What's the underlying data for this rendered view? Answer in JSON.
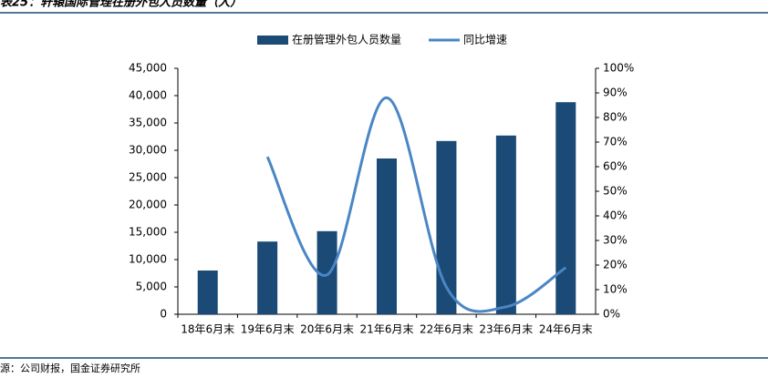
{
  "chart_data": {
    "type": "bar_line",
    "title": "表25：轩辕国际管理在册外包人员数量（人）",
    "source": "源：公司财报，国金证券研究所",
    "categories": [
      "18年6月末",
      "19年6月末",
      "20年6月末",
      "21年6月末",
      "22年6月末",
      "23年6月末",
      "24年6月末"
    ],
    "series": [
      {
        "name": "在册管理外包人员数量",
        "color": "#1a4a75",
        "type": "bar",
        "values": [
          8000,
          13300,
          15200,
          28500,
          31700,
          32700,
          38800
        ]
      },
      {
        "name": "同比增速",
        "color": "#4a86c5",
        "type": "line",
        "axis": "y2",
        "values": [
          null,
          64,
          16,
          88,
          11,
          3,
          19
        ]
      }
    ],
    "ylim": [
      0,
      45000
    ],
    "yticks": [
      0,
      {
        "value": 5000,
        "label": "5,000"
      },
      {
        "value": 10000,
        "label": "10,000"
      },
      {
        "value": 15000,
        "label": "15,000"
      },
      {
        "value": 20000,
        "label": "20,000"
      },
      {
        "value": 25000,
        "label": "25,000"
      },
      {
        "value": 30000,
        "label": "30,000"
      },
      {
        "value": 35000,
        "label": "35,000"
      },
      {
        "value": 40000,
        "label": "40,000"
      },
      {
        "value": 45000,
        "label": "45,000"
      }
    ],
    "y2lim": [
      0,
      100
    ],
    "y2ticks": [
      {
        "value": 0,
        "label": "0%"
      },
      {
        "value": 10,
        "label": "10%"
      },
      {
        "value": 20,
        "label": "20%"
      },
      {
        "value": 30,
        "label": "30%"
      },
      {
        "value": 40,
        "label": "40%"
      },
      {
        "value": 50,
        "label": "50%"
      },
      {
        "value": 60,
        "label": "60%"
      },
      {
        "value": 70,
        "label": "70%"
      },
      {
        "value": 80,
        "label": "80%"
      },
      {
        "value": 90,
        "label": "90%"
      },
      {
        "value": 100,
        "label": "100%"
      }
    ]
  }
}
